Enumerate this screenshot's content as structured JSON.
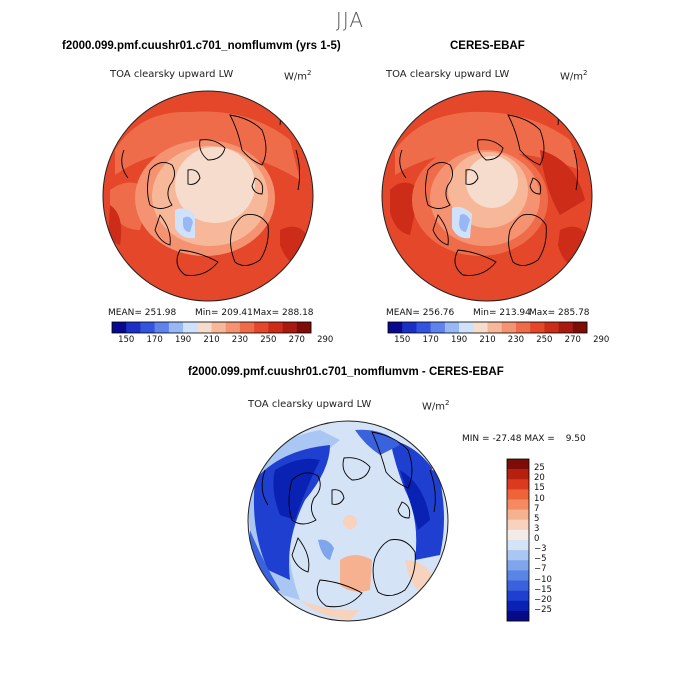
{
  "season": "JJA",
  "left_panel": {
    "title": "f2000.099.pmf.cuushr01.c701_nomflumvm (yrs 1-5)",
    "variable": "TOA clearsky upward LW",
    "units": "W/m",
    "units_exp": "2",
    "mean_label": "MEAN=",
    "mean": "251.98",
    "min_label": "Min=",
    "min": "209.41",
    "max_label": "Max=",
    "max": "288.18"
  },
  "right_panel": {
    "title": "CERES-EBAF",
    "variable": "TOA clearsky upward LW",
    "units": "W/m",
    "units_exp": "2",
    "mean_label": "MEAN=",
    "mean": "256.76",
    "min_label": "Min=",
    "min": "213.94",
    "max_label": "Max=",
    "max": "285.78"
  },
  "abs_colorbar": {
    "colors": [
      "#08088e",
      "#1a2fc4",
      "#3355de",
      "#5e83ec",
      "#98b7f5",
      "#d0e2fb",
      "#f6dccc",
      "#f7b89a",
      "#f59271",
      "#ef6c4a",
      "#e4472a",
      "#cc2c18",
      "#a81a10",
      "#7d0d06"
    ],
    "tick_labels": [
      "150",
      "170",
      "190",
      "210",
      "230",
      "250",
      "270",
      "290"
    ]
  },
  "diff_panel": {
    "title": "f2000.099.pmf.cuushr01.c701_nomflumvm - CERES-EBAF",
    "variable": "TOA clearsky upward LW",
    "units": "W/m",
    "units_exp": "2",
    "min_label": "MIN =",
    "min": "-27.48",
    "max_label": "MAX =",
    "max": "9.50"
  },
  "diff_colorbar": {
    "colors": [
      "#7d0d06",
      "#b5200f",
      "#dc3a1e",
      "#ef6339",
      "#f48a62",
      "#f6b190",
      "#f7d2bd",
      "#f3ece6",
      "#d5e3f6",
      "#aac6f2",
      "#7fa5ec",
      "#5a84e6",
      "#3a62dc",
      "#1e3fcf",
      "#0a22b3",
      "#060a86"
    ],
    "tick_labels": [
      "25",
      "20",
      "15",
      "10",
      "7",
      "5",
      "3",
      "0",
      "−3",
      "−5",
      "−7",
      "−10",
      "−15",
      "−20",
      "−25"
    ]
  }
}
